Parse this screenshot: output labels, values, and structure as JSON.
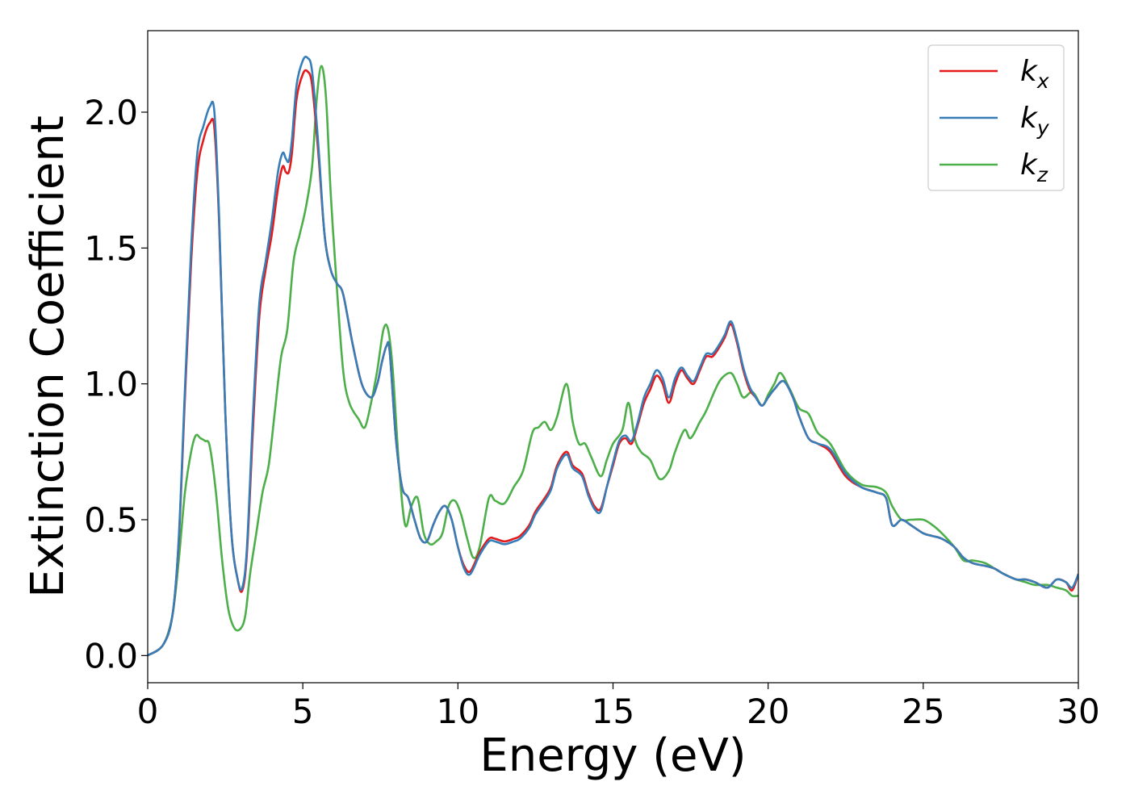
{
  "chart_data": {
    "type": "line",
    "title": "",
    "xlabel": "Energy (eV)",
    "ylabel": "Extinction Coefficient",
    "xlim": [
      0,
      30
    ],
    "ylim": [
      -0.1,
      2.3
    ],
    "xticks": [
      0,
      5,
      10,
      15,
      20,
      25,
      30
    ],
    "xtick_labels": [
      "0",
      "5",
      "10",
      "15",
      "20",
      "25",
      "30"
    ],
    "yticks": [
      0.0,
      0.5,
      1.0,
      1.5,
      2.0
    ],
    "ytick_labels": [
      "0.0",
      "0.5",
      "1.0",
      "1.5",
      "2.0"
    ],
    "grid": false,
    "legend_position": "top-right",
    "series": [
      {
        "name": "k_x",
        "label_main": "k",
        "label_sub": "x",
        "color": "#e41a1c",
        "x": [
          0,
          0.5,
          0.8,
          1.0,
          1.2,
          1.4,
          1.6,
          1.8,
          2.0,
          2.15,
          2.3,
          2.5,
          2.7,
          2.9,
          3.05,
          3.2,
          3.4,
          3.6,
          3.8,
          4.0,
          4.2,
          4.35,
          4.45,
          4.55,
          4.65,
          4.8,
          5.0,
          5.15,
          5.3,
          5.5,
          5.7,
          5.9,
          6.1,
          6.3,
          6.6,
          6.9,
          7.2,
          7.4,
          7.55,
          7.7,
          7.8,
          8.0,
          8.2,
          8.4,
          8.6,
          8.8,
          9.0,
          9.2,
          9.4,
          9.6,
          9.8,
          10.0,
          10.2,
          10.4,
          10.7,
          11.0,
          11.2,
          11.5,
          11.8,
          12.0,
          12.3,
          12.5,
          12.8,
          13.0,
          13.2,
          13.5,
          13.7,
          14.0,
          14.2,
          14.4,
          14.6,
          14.8,
          15.0,
          15.2,
          15.4,
          15.6,
          15.8,
          16.0,
          16.2,
          16.4,
          16.6,
          16.8,
          17.0,
          17.2,
          17.4,
          17.6,
          17.8,
          18.0,
          18.2,
          18.4,
          18.6,
          18.8,
          19.0,
          19.2,
          19.4,
          19.6,
          19.8,
          20.0,
          20.2,
          20.5,
          20.8,
          21.0,
          21.3,
          21.6,
          22.0,
          22.5,
          23.0,
          23.5,
          23.8,
          24.0,
          24.3,
          24.6,
          25.0,
          25.3,
          25.6,
          26.0,
          26.3,
          26.6,
          27.0,
          27.3,
          27.6,
          28.0,
          28.3,
          28.6,
          29.0,
          29.3,
          29.6,
          29.8,
          30.0
        ],
        "y": [
          0.0,
          0.04,
          0.15,
          0.42,
          0.95,
          1.45,
          1.78,
          1.9,
          1.96,
          1.94,
          1.6,
          0.9,
          0.45,
          0.28,
          0.24,
          0.38,
          0.85,
          1.25,
          1.42,
          1.55,
          1.72,
          1.8,
          1.78,
          1.78,
          1.85,
          2.05,
          2.14,
          2.15,
          2.1,
          1.85,
          1.55,
          1.42,
          1.37,
          1.33,
          1.15,
          1.0,
          0.95,
          1.0,
          1.08,
          1.14,
          1.12,
          0.8,
          0.62,
          0.58,
          0.5,
          0.43,
          0.42,
          0.48,
          0.53,
          0.55,
          0.5,
          0.4,
          0.33,
          0.31,
          0.38,
          0.43,
          0.43,
          0.42,
          0.43,
          0.44,
          0.48,
          0.53,
          0.58,
          0.62,
          0.7,
          0.75,
          0.7,
          0.67,
          0.6,
          0.55,
          0.54,
          0.62,
          0.7,
          0.78,
          0.8,
          0.78,
          0.85,
          0.93,
          0.98,
          1.03,
          1.0,
          0.93,
          1.0,
          1.05,
          1.02,
          1.0,
          1.05,
          1.1,
          1.1,
          1.13,
          1.17,
          1.22,
          1.15,
          1.05,
          0.98,
          0.95,
          0.92,
          0.95,
          0.98,
          1.01,
          0.95,
          0.88,
          0.8,
          0.78,
          0.75,
          0.66,
          0.62,
          0.6,
          0.58,
          0.48,
          0.5,
          0.48,
          0.45,
          0.44,
          0.43,
          0.4,
          0.36,
          0.34,
          0.33,
          0.32,
          0.3,
          0.28,
          0.28,
          0.27,
          0.25,
          0.28,
          0.27,
          0.24,
          0.3
        ]
      },
      {
        "name": "k_y",
        "label_main": "k",
        "label_sub": "y",
        "color": "#377eb8",
        "x": [
          0,
          0.5,
          0.8,
          1.0,
          1.2,
          1.4,
          1.6,
          1.8,
          2.0,
          2.15,
          2.3,
          2.5,
          2.7,
          2.9,
          3.05,
          3.2,
          3.4,
          3.6,
          3.8,
          4.0,
          4.2,
          4.35,
          4.45,
          4.55,
          4.65,
          4.8,
          5.0,
          5.15,
          5.3,
          5.5,
          5.7,
          5.9,
          6.1,
          6.3,
          6.6,
          6.9,
          7.2,
          7.4,
          7.55,
          7.7,
          7.8,
          8.0,
          8.2,
          8.4,
          8.6,
          8.8,
          9.0,
          9.2,
          9.4,
          9.6,
          9.8,
          10.0,
          10.2,
          10.4,
          10.7,
          11.0,
          11.2,
          11.5,
          11.8,
          12.0,
          12.3,
          12.5,
          12.8,
          13.0,
          13.2,
          13.5,
          13.7,
          14.0,
          14.2,
          14.4,
          14.6,
          14.8,
          15.0,
          15.2,
          15.4,
          15.6,
          15.8,
          16.0,
          16.2,
          16.4,
          16.6,
          16.8,
          17.0,
          17.2,
          17.4,
          17.6,
          17.8,
          18.0,
          18.2,
          18.4,
          18.6,
          18.8,
          19.0,
          19.2,
          19.4,
          19.6,
          19.8,
          20.0,
          20.2,
          20.5,
          20.8,
          21.0,
          21.3,
          21.6,
          22.0,
          22.5,
          23.0,
          23.5,
          23.8,
          24.0,
          24.3,
          24.6,
          25.0,
          25.3,
          25.6,
          26.0,
          26.3,
          26.6,
          27.0,
          27.3,
          27.6,
          28.0,
          28.3,
          28.6,
          29.0,
          29.3,
          29.6,
          29.8,
          30.0
        ],
        "y": [
          0.0,
          0.04,
          0.15,
          0.43,
          0.98,
          1.5,
          1.85,
          1.95,
          2.02,
          2.0,
          1.62,
          0.9,
          0.45,
          0.28,
          0.25,
          0.4,
          0.9,
          1.3,
          1.45,
          1.6,
          1.78,
          1.85,
          1.83,
          1.82,
          1.9,
          2.1,
          2.19,
          2.2,
          2.15,
          1.88,
          1.55,
          1.42,
          1.37,
          1.33,
          1.15,
          1.0,
          0.95,
          1.0,
          1.08,
          1.14,
          1.12,
          0.8,
          0.62,
          0.58,
          0.5,
          0.43,
          0.42,
          0.48,
          0.53,
          0.55,
          0.5,
          0.4,
          0.32,
          0.3,
          0.37,
          0.42,
          0.42,
          0.41,
          0.42,
          0.43,
          0.47,
          0.52,
          0.57,
          0.61,
          0.69,
          0.74,
          0.69,
          0.66,
          0.59,
          0.54,
          0.53,
          0.62,
          0.71,
          0.79,
          0.81,
          0.79,
          0.86,
          0.95,
          1.0,
          1.05,
          1.02,
          0.95,
          1.02,
          1.06,
          1.03,
          1.01,
          1.06,
          1.11,
          1.11,
          1.14,
          1.18,
          1.23,
          1.16,
          1.06,
          0.99,
          0.95,
          0.92,
          0.95,
          0.98,
          1.01,
          0.95,
          0.88,
          0.8,
          0.78,
          0.76,
          0.67,
          0.62,
          0.6,
          0.58,
          0.48,
          0.5,
          0.48,
          0.45,
          0.44,
          0.43,
          0.4,
          0.36,
          0.34,
          0.33,
          0.32,
          0.3,
          0.28,
          0.28,
          0.27,
          0.25,
          0.28,
          0.27,
          0.25,
          0.3
        ]
      },
      {
        "name": "k_z",
        "label_main": "k",
        "label_sub": "z",
        "color": "#4daf4a",
        "x": [
          0,
          0.5,
          0.8,
          1.0,
          1.2,
          1.4,
          1.55,
          1.7,
          1.85,
          2.0,
          2.2,
          2.4,
          2.6,
          2.8,
          3.0,
          3.15,
          3.3,
          3.5,
          3.7,
          3.9,
          4.1,
          4.3,
          4.5,
          4.7,
          4.9,
          5.1,
          5.3,
          5.45,
          5.6,
          5.75,
          5.9,
          6.1,
          6.3,
          6.5,
          6.8,
          7.0,
          7.2,
          7.4,
          7.6,
          7.75,
          7.9,
          8.1,
          8.3,
          8.5,
          8.7,
          8.9,
          9.1,
          9.3,
          9.5,
          9.7,
          9.9,
          10.1,
          10.3,
          10.5,
          10.7,
          11.0,
          11.2,
          11.5,
          11.8,
          12.1,
          12.4,
          12.6,
          12.8,
          13.0,
          13.2,
          13.5,
          13.7,
          13.9,
          14.1,
          14.3,
          14.6,
          14.8,
          15.0,
          15.3,
          15.5,
          15.7,
          15.9,
          16.2,
          16.5,
          16.8,
          17.0,
          17.3,
          17.5,
          17.8,
          18.0,
          18.3,
          18.5,
          18.8,
          19.0,
          19.2,
          19.5,
          19.8,
          20.0,
          20.2,
          20.4,
          20.7,
          21.0,
          21.3,
          21.6,
          22.0,
          22.5,
          23.0,
          23.5,
          23.8,
          24.0,
          24.3,
          24.6,
          25.0,
          25.3,
          25.6,
          26.0,
          26.3,
          26.6,
          27.0,
          27.3,
          27.6,
          28.0,
          28.3,
          28.6,
          29.0,
          29.3,
          29.6,
          29.8,
          30.0
        ],
        "y": [
          0.0,
          0.04,
          0.15,
          0.35,
          0.6,
          0.75,
          0.81,
          0.8,
          0.79,
          0.77,
          0.6,
          0.35,
          0.17,
          0.1,
          0.1,
          0.15,
          0.3,
          0.45,
          0.6,
          0.7,
          0.9,
          1.1,
          1.2,
          1.45,
          1.55,
          1.65,
          1.8,
          2.05,
          2.17,
          2.05,
          1.7,
          1.35,
          1.05,
          0.93,
          0.87,
          0.84,
          0.93,
          1.05,
          1.2,
          1.2,
          1.05,
          0.7,
          0.48,
          0.55,
          0.58,
          0.45,
          0.41,
          0.42,
          0.45,
          0.55,
          0.57,
          0.52,
          0.43,
          0.36,
          0.4,
          0.58,
          0.57,
          0.56,
          0.62,
          0.68,
          0.82,
          0.84,
          0.86,
          0.83,
          0.88,
          1.0,
          0.86,
          0.78,
          0.78,
          0.73,
          0.66,
          0.72,
          0.78,
          0.83,
          0.93,
          0.8,
          0.75,
          0.72,
          0.65,
          0.68,
          0.75,
          0.83,
          0.8,
          0.86,
          0.9,
          0.98,
          1.02,
          1.04,
          1.0,
          0.95,
          0.97,
          0.92,
          0.96,
          1.0,
          1.04,
          0.98,
          0.91,
          0.89,
          0.82,
          0.78,
          0.68,
          0.63,
          0.62,
          0.6,
          0.55,
          0.5,
          0.5,
          0.5,
          0.48,
          0.45,
          0.4,
          0.35,
          0.35,
          0.34,
          0.32,
          0.3,
          0.28,
          0.27,
          0.26,
          0.26,
          0.25,
          0.24,
          0.22,
          0.22
        ]
      }
    ]
  }
}
